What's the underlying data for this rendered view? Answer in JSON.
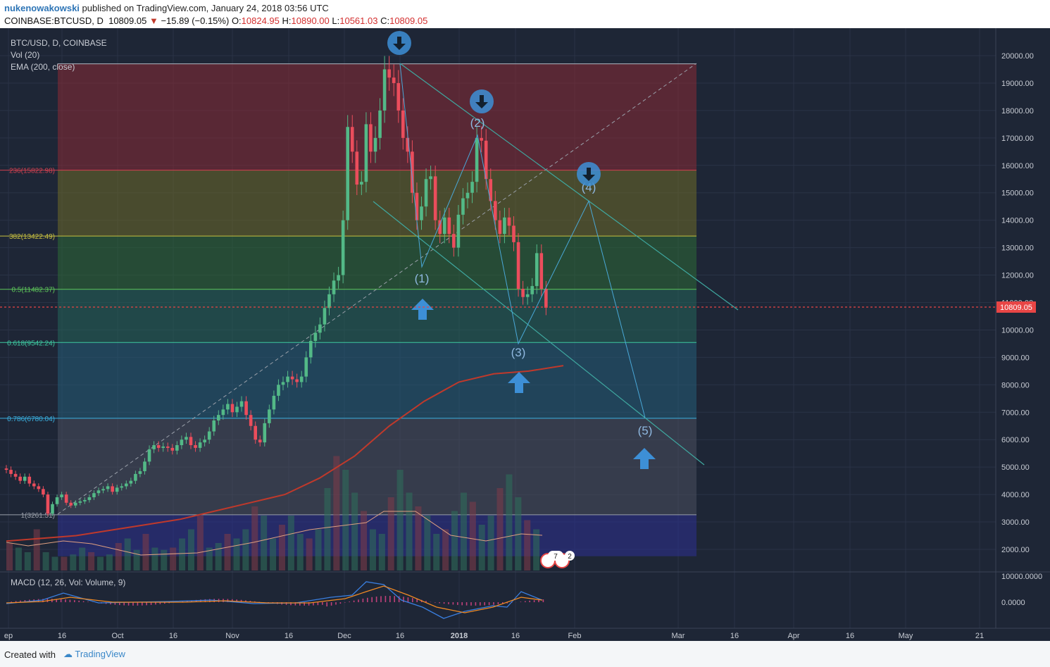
{
  "header": {
    "author": "nukenowakowski",
    "published_text": "published on TradingView.com, January 24, 2018 03:56 UTC",
    "symbol": "COINBASE:BTCUSD, D",
    "last": "10809.05",
    "change": "−15.89 (−0.15%)",
    "o_label": "O:",
    "o_val": "10824.95",
    "h_label": "H:",
    "h_val": "10890.00",
    "l_label": "L:",
    "l_val": "10561.03",
    "c_label": "C:",
    "c_val": "10809.05"
  },
  "legend": {
    "title": "BTC/USD, D, COINBASE",
    "vol": "Vol (20)",
    "ema": "EMA (200, close)"
  },
  "macd": {
    "label": "MACD (12, 26, Vol: Volume, 9)",
    "ticks": [
      "10000.0000",
      "0.0000"
    ]
  },
  "footer": {
    "created_with": "Created with",
    "brand": "TradingView"
  },
  "colors": {
    "background": "#1e2636",
    "up": "#53b987",
    "down": "#eb4d5c",
    "ema": "#c0392b",
    "arrow": "#3d8fd6",
    "price_line": "#e84545"
  },
  "chart_data": {
    "type": "candlestick",
    "symbol": "BTC/USD",
    "interval": "D",
    "exchange": "COINBASE",
    "ylim": [
      1500,
      20500
    ],
    "y_ticks": [
      "20000.00",
      "19000.00",
      "18000.00",
      "17000.00",
      "16000.00",
      "15000.00",
      "14000.00",
      "13000.00",
      "12000.00",
      "11000.00",
      "10000.00",
      "9000.00",
      "8000.00",
      "7000.00",
      "6000.00",
      "5000.00",
      "4000.00",
      "3000.00",
      "2000.00"
    ],
    "x_ticks": [
      "ep",
      "16",
      "Oct",
      "16",
      "Nov",
      "16",
      "Dec",
      "16",
      "2018",
      "16",
      "Feb",
      "Mar",
      "16",
      "Apr",
      "16",
      "May",
      "21"
    ],
    "last_price": "10809.05",
    "fib_levels": [
      {
        "label": "236(15822.98)",
        "value": 15822.98
      },
      {
        "label": "382(13422.49)",
        "value": 13422.49
      },
      {
        "label": "0.5(11482.37)",
        "value": 11482.37
      },
      {
        "label": "0.618(9542.24)",
        "value": 9542.24
      },
      {
        "label": "0.786(6780.04)",
        "value": 6780.04
      },
      {
        "label": "1(3261.51)",
        "value": 3261.51
      }
    ],
    "waves": [
      {
        "label": "(1)",
        "value": 12300
      },
      {
        "label": "(2)",
        "value": 17100
      },
      {
        "label": "(3)",
        "value": 9500
      },
      {
        "label": "(4)",
        "value": 14700
      },
      {
        "label": "(5)",
        "value": 6800
      }
    ],
    "event_badges": [
      "7",
      "2"
    ],
    "closes": [
      4900,
      4750,
      4650,
      4500,
      4650,
      4400,
      4300,
      4200,
      4000,
      3300,
      3650,
      3900,
      4000,
      3700,
      3600,
      3700,
      3750,
      3800,
      3900,
      4050,
      4150,
      4200,
      4300,
      4100,
      4250,
      4300,
      4400,
      4500,
      4750,
      4850,
      5200,
      5650,
      5800,
      5700,
      5750,
      5700,
      5600,
      5800,
      6000,
      6100,
      5800,
      5700,
      5900,
      6000,
      6300,
      6700,
      6900,
      7100,
      7300,
      7000,
      7200,
      7400,
      6900,
      6500,
      6000,
      5900,
      6600,
      7100,
      7600,
      8000,
      8100,
      8300,
      8200,
      8100,
      8300,
      9000,
      9600,
      9900,
      10200,
      10800,
      11300,
      11800,
      12000,
      14000,
      17400,
      16500,
      15300,
      15400,
      17500,
      16500,
      17000,
      18000,
      19500,
      19200,
      19000,
      18000,
      17000,
      16500,
      15000,
      14000,
      14500,
      15500,
      15600,
      14000,
      13500,
      14100,
      13500,
      13000,
      14200,
      14800,
      15000,
      15400,
      17000,
      16900,
      15500,
      14700,
      14000,
      13500,
      14100,
      13800,
      13200,
      11500,
      11200,
      11300,
      11600,
      12800,
      11500,
      10809.05
    ],
    "ema200": [
      2300,
      2400,
      2500,
      2700,
      2900,
      3100,
      3400,
      3700,
      4000,
      4600,
      5400,
      6500,
      7400,
      8100,
      8400,
      8500,
      8700
    ],
    "volume": [
      600,
      500,
      400,
      900,
      400,
      300,
      300,
      350,
      500,
      400,
      300,
      350,
      600,
      700,
      450,
      800,
      500,
      450,
      500,
      700,
      900,
      1200,
      500,
      600,
      800,
      700,
      900,
      1400,
      1200,
      700,
      1000,
      1200,
      800,
      700,
      900,
      1800,
      2500,
      2200,
      1700,
      1300,
      900,
      800,
      1600,
      2200,
      1700,
      1400,
      1200,
      800,
      900,
      1300,
      1700,
      1500,
      1000,
      1200,
      1800,
      2100,
      1600,
      1100,
      900
    ]
  }
}
